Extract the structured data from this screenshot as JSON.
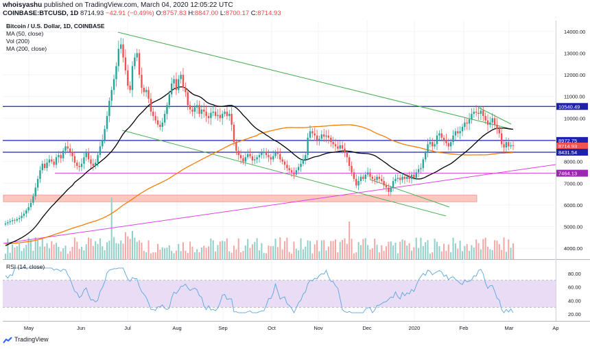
{
  "header": {
    "author": "whoisyashu",
    "published": "published on TradingView.com, March 04, 2020 12:05:22 UTC",
    "symbol": "COINBASE:BTCUSD, 1D",
    "last": "8714.93",
    "change": "−42.91 (−0.49%)",
    "o_label": "O:",
    "o": "8757.83",
    "h_label": "H:",
    "h": "8847.00",
    "l_label": "L:",
    "l": "8700.17",
    "c_label": "C:",
    "c": "8714.93"
  },
  "legend": {
    "title": "Bitcoin / U.S. Dollar, 1D, COINBASE",
    "ma50": "MA (50, close)",
    "vol": "Vol (200)",
    "ma200": "MA (200, close)",
    "rsi": "RSI (14, close)"
  },
  "footer": {
    "brand": "TradingView"
  },
  "colors": {
    "up": "#26a69a",
    "down": "#ef5350",
    "ma50": "#000000",
    "ma200": "#f57c00",
    "hline": "#1e22aa",
    "magenta": "#e040e0",
    "trend": "#4caf50",
    "rsi": "#58a6e0",
    "rsiband": "#e9dcf5",
    "zone": "#f8b6aa"
  },
  "chart_data": {
    "type": "candlestick",
    "price_axis": {
      "min": 3500,
      "max": 14500,
      "ticks": [
        4000,
        5000,
        6000,
        7000,
        8000,
        9000,
        10000,
        11000,
        12000,
        13000,
        14000
      ]
    },
    "price_tick_labels": [
      "4000.00",
      "5000.00",
      "6000.00",
      "7000.00",
      "8000.00",
      "9000.00",
      "10000.00",
      "11000.00",
      "12000.00",
      "13000.00",
      "14000.00"
    ],
    "rsi_axis": {
      "min": 10,
      "max": 100,
      "ticks": [
        20,
        40,
        60,
        80
      ],
      "band": [
        30,
        70
      ]
    },
    "rsi_tick_labels": [
      "20.00",
      "40.00",
      "60.00",
      "80.00"
    ],
    "x_labels": [
      "May",
      "Jun",
      "Jul",
      "Aug",
      "Sep",
      "Oct",
      "Nov",
      "Dec",
      "2020",
      "Feb",
      "Mar",
      "Ap"
    ],
    "price_tags": [
      {
        "value": 10540.49,
        "label": "10540.49",
        "color": "#1e22aa"
      },
      {
        "value": 8972.75,
        "label": "8972.75",
        "color": "#1e22aa"
      },
      {
        "value": 8714.93,
        "label": "8714.93",
        "color": "#ef5350"
      },
      {
        "value": 8470,
        "label": "11:54:40",
        "color": "#ef5350"
      },
      {
        "value": 8431.54,
        "label": "8431.54",
        "color": "#1e22aa"
      },
      {
        "value": 7464.13,
        "label": "7464.13",
        "color": "#9c27b0"
      }
    ],
    "horizontal_levels": [
      10540.49,
      8972.75,
      8431.54
    ],
    "purple_level": 7464.13,
    "support_zone": [
      6150,
      6450
    ],
    "closes": [
      5150,
      5200,
      5250,
      5300,
      5280,
      5350,
      5400,
      5500,
      5600,
      5750,
      5900,
      6100,
      6400,
      6800,
      7200,
      7600,
      7900,
      7700,
      7950,
      8100,
      8000,
      7850,
      8200,
      8300,
      8150,
      8500,
      8700,
      8600,
      8450,
      8250,
      7950,
      7800,
      7750,
      7900,
      8200,
      8400,
      8100,
      7900,
      7800,
      7950,
      8300,
      8700,
      9000,
      9500,
      10100,
      10800,
      11300,
      11800,
      12400,
      13200,
      13400,
      12800,
      12200,
      11500,
      11300,
      12400,
      12800,
      13000,
      12000,
      11400,
      11200,
      11300,
      10900,
      10300,
      10100,
      9900,
      9700,
      9600,
      9800,
      10200,
      10600,
      11100,
      11600,
      11800,
      11300,
      11800,
      12000,
      11400,
      11200,
      10600,
      10400,
      10300,
      10500,
      10600,
      10200,
      10400,
      10300,
      10100,
      10000,
      10250,
      10300,
      10100,
      10150,
      10000,
      10200,
      10300,
      10100,
      10200,
      9700,
      8900,
      8500,
      8300,
      8150,
      8000,
      8200,
      8350,
      8250,
      8050,
      8100,
      8200,
      8300,
      8400,
      8450,
      8300,
      8200,
      8100,
      8250,
      8400,
      8350,
      8100,
      8000,
      7850,
      7700,
      7600,
      7500,
      7400,
      7600,
      7750,
      7900,
      8100,
      8300,
      9100,
      9400,
      9300,
      9200,
      9000,
      9050,
      9250,
      9150,
      9200,
      9100,
      8900,
      8800,
      8700,
      8600,
      8750,
      8600,
      8400,
      8200,
      7800,
      7500,
      7200,
      6900,
      7100,
      7300,
      7200,
      7400,
      7500,
      7300,
      7200,
      7150,
      7300,
      7200,
      7100,
      6900,
      6800,
      6600,
      6800,
      7100,
      7200,
      7250,
      7150,
      7300,
      7200,
      7300,
      7200,
      7400,
      7250,
      7500,
      7650,
      7700,
      8100,
      8400,
      8800,
      8900,
      8700,
      8800,
      9200,
      9300,
      9100,
      9000,
      8850,
      8700,
      8900,
      9200,
      9400,
      9300,
      9400,
      9600,
      9800,
      9750,
      9950,
      10200,
      10300,
      10250,
      10200,
      10350,
      10100,
      9900,
      9700,
      9800,
      10000,
      9700,
      9500,
      9300,
      8800,
      8650,
      8900,
      8700,
      8750,
      8714.93
    ]
  }
}
